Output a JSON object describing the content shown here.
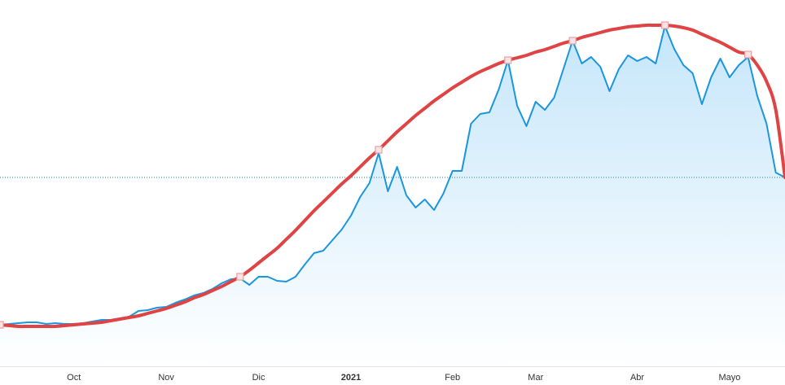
{
  "chart_data": {
    "type": "line",
    "categories": [
      null,
      null,
      null,
      null,
      null,
      null,
      null,
      null,
      "Oct",
      null,
      null,
      null,
      null,
      null,
      null,
      null,
      null,
      null,
      "Nov",
      null,
      null,
      null,
      null,
      null,
      null,
      null,
      null,
      null,
      "Dic",
      null,
      null,
      null,
      null,
      null,
      null,
      null,
      null,
      null,
      "2021",
      null,
      null,
      null,
      null,
      null,
      null,
      null,
      null,
      null,
      null,
      "Feb",
      null,
      null,
      null,
      null,
      null,
      null,
      null,
      null,
      "Mar",
      null,
      null,
      null,
      null,
      null,
      null,
      null,
      null,
      null,
      null,
      "Abr",
      null,
      null,
      null,
      null,
      null,
      null,
      null,
      null,
      null,
      "Mayo",
      null,
      null,
      null,
      null,
      null,
      null
    ],
    "series": [
      {
        "color": "#1a96de",
        "fill": true,
        "values": [
          51,
          52,
          53,
          54,
          54,
          52,
          53,
          52,
          52,
          53,
          55,
          57,
          57,
          59,
          61,
          68,
          69,
          72,
          73,
          78,
          82,
          87,
          90,
          95,
          102,
          107,
          108,
          100,
          110,
          110,
          105,
          104,
          110,
          125,
          139,
          142,
          155,
          168,
          185,
          208,
          225,
          262,
          215,
          245,
          210,
          195,
          205,
          192,
          212,
          240,
          240,
          298,
          310,
          312,
          340,
          376,
          320,
          295,
          325,
          315,
          330,
          365,
          400,
          372,
          380,
          368,
          338,
          365,
          382,
          375,
          380,
          372,
          418,
          390,
          370,
          360,
          322,
          355,
          378,
          355,
          370,
          380,
          332,
          298,
          238,
          232
        ]
      },
      {
        "color": "#e04343",
        "smooth": true,
        "values": [
          51,
          50,
          49,
          49,
          49,
          49,
          49,
          50,
          51,
          52,
          53,
          54,
          56,
          58,
          60,
          62,
          65,
          68,
          71,
          75,
          79,
          84,
          88,
          93,
          98,
          104,
          110,
          118,
          127,
          136,
          145,
          156,
          167,
          179,
          191,
          202,
          213,
          224,
          234,
          245,
          256,
          266,
          277,
          288,
          298,
          308,
          317,
          326,
          334,
          342,
          349,
          356,
          362,
          367,
          372,
          376,
          379,
          382,
          386,
          389,
          393,
          397,
          400,
          404,
          407,
          410,
          413,
          415,
          417,
          418,
          419,
          419,
          419,
          418,
          416,
          413,
          408,
          403,
          398,
          392,
          386,
          383,
          370,
          350,
          315,
          232
        ]
      },
      {
        "color": "#e04343",
        "markers": true,
        "values": [
          51,
          null,
          null,
          null,
          null,
          null,
          null,
          null,
          null,
          null,
          null,
          null,
          null,
          null,
          null,
          null,
          null,
          null,
          null,
          null,
          null,
          null,
          null,
          null,
          null,
          null,
          110,
          null,
          null,
          null,
          null,
          null,
          null,
          null,
          null,
          null,
          null,
          null,
          null,
          null,
          null,
          266,
          null,
          null,
          null,
          null,
          null,
          null,
          null,
          null,
          null,
          null,
          null,
          null,
          null,
          376,
          null,
          null,
          null,
          null,
          null,
          null,
          400,
          null,
          null,
          null,
          null,
          null,
          null,
          null,
          null,
          null,
          419,
          null,
          null,
          null,
          null,
          null,
          null,
          null,
          null,
          383,
          null,
          null,
          null,
          null
        ]
      }
    ],
    "ylim": [
      0,
      450
    ],
    "last_value_line": true
  }
}
